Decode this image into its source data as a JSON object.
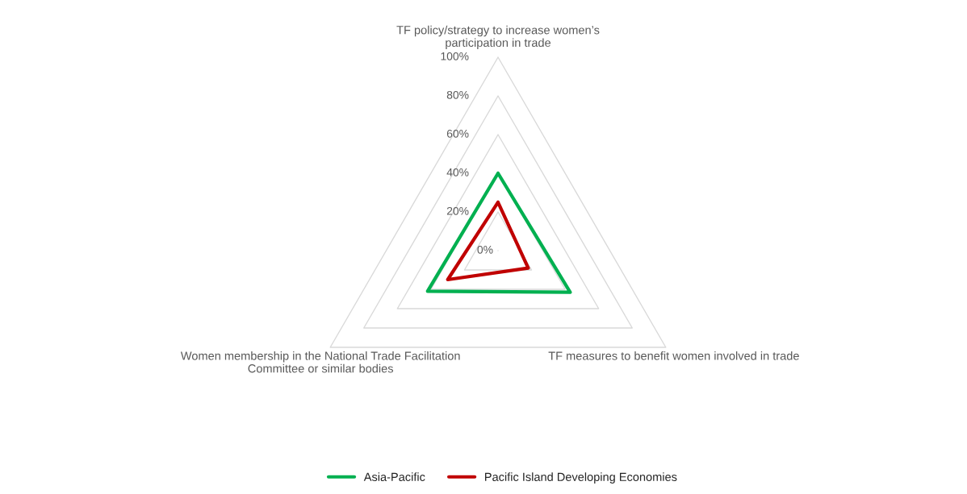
{
  "chart_data": {
    "type": "radar",
    "categories": [
      "TF policy/strategy to increase women’s participation in trade",
      "TF measures to benefit women involved in trade",
      "Women membership in the National Trade Facilitation Committee or similar bodies"
    ],
    "series": [
      {
        "name": "Asia-Pacific",
        "color": "#00b050",
        "values": [
          40,
          43,
          42
        ]
      },
      {
        "name": "Pacific Island Developing Economies",
        "color": "#c00000",
        "values": [
          25,
          18,
          30
        ]
      }
    ],
    "ylim": [
      0,
      100
    ],
    "yticks": [
      {
        "value": 0,
        "label": "0%"
      },
      {
        "value": 20,
        "label": "20%"
      },
      {
        "value": 40,
        "label": "40%"
      },
      {
        "value": 60,
        "label": "60%"
      },
      {
        "value": 80,
        "label": "80%"
      },
      {
        "value": 100,
        "label": "100%"
      }
    ],
    "grid": true,
    "legend": "bottom"
  }
}
